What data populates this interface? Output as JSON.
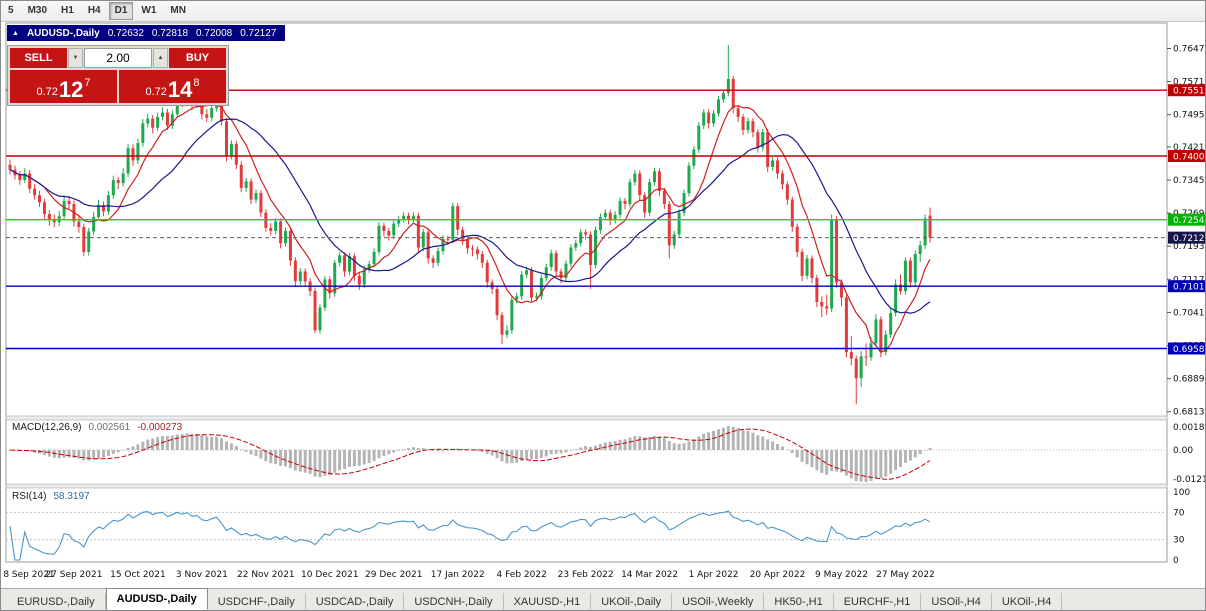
{
  "toolbar": {
    "timeframes": [
      {
        "label": "5",
        "active": false
      },
      {
        "label": "M30",
        "active": false
      },
      {
        "label": "H1",
        "active": false
      },
      {
        "label": "H4",
        "active": false
      },
      {
        "label": "D1",
        "active": true
      },
      {
        "label": "W1",
        "active": false
      },
      {
        "label": "MN",
        "active": false
      }
    ]
  },
  "chart_title": {
    "collapse_icon": "▲",
    "symbol": "AUDUSD-,Daily",
    "open": "0.72632",
    "high": "0.72818",
    "low": "0.72008",
    "close": "0.72127"
  },
  "trade_panel": {
    "sell_label": "SELL",
    "buy_label": "BUY",
    "volume": "2.00",
    "bid": {
      "big": "0.72",
      "pips": "12",
      "pip": "7"
    },
    "ask": {
      "big": "0.72",
      "pips": "14",
      "pip": "8"
    }
  },
  "price_axis": {
    "ticks": [
      "0.76470",
      "0.75710",
      "0.74950",
      "0.74210",
      "0.73450",
      "0.72690",
      "0.71930",
      "0.71170",
      "0.70410",
      "0.69650",
      "0.68890",
      "0.68130"
    ],
    "badges": [
      {
        "text": "0.75512",
        "bg": "#be0000"
      },
      {
        "text": "0.74002",
        "bg": "#be0000"
      },
      {
        "text": "0.72540",
        "bg": "#00b400"
      },
      {
        "text": "0.72127",
        "bg": "#15154a"
      },
      {
        "text": "0.71013",
        "bg": "#0000b4"
      },
      {
        "text": "0.69582",
        "bg": "#0000b4"
      }
    ]
  },
  "chart_data": {
    "type": "candlestick",
    "title": "AUDUSD Daily",
    "ylim": [
      0.6813,
      0.7647
    ],
    "label_every": 13,
    "x_labels": [
      "8 Sep 2021",
      "27 Sep 2021",
      "15 Oct 2021",
      "3 Nov 2021",
      "22 Nov 2021",
      "10 Dec 2021",
      "29 Dec 2021",
      "17 Jan 2022",
      "4 Feb 2022",
      "23 Feb 2022",
      "14 Mar 2022",
      "1 Apr 2022",
      "20 Apr 2022",
      "9 May 2022",
      "27 May 2022"
    ],
    "colors": {
      "up": "#1fa94e",
      "down": "#e23b3b"
    },
    "overlays": [
      {
        "name": "ma-fast",
        "type": "sma",
        "period": 8,
        "color": "#d02020"
      },
      {
        "name": "ma-slow",
        "type": "sma",
        "period": 21,
        "color": "#1a1a8c"
      }
    ],
    "hlines": [
      {
        "price": 0.75512,
        "color": "#c00000",
        "style": "solid"
      },
      {
        "price": 0.74002,
        "color": "#c00000",
        "style": "solid"
      },
      {
        "price": 0.7254,
        "color": "#00dc00",
        "style": "solid"
      },
      {
        "price": 0.72127,
        "color": "#606060",
        "style": "dash"
      },
      {
        "price": 0.71013,
        "color": "#0000c0",
        "style": "solid"
      },
      {
        "price": 0.69582,
        "color": "#0000c0",
        "style": "solid"
      }
    ],
    "candles": [
      [
        0.738,
        0.7392,
        0.7358,
        0.7369
      ],
      [
        0.7369,
        0.7378,
        0.7346,
        0.7356
      ],
      [
        0.7356,
        0.7366,
        0.7334,
        0.7345
      ],
      [
        0.7345,
        0.7372,
        0.7338,
        0.736
      ],
      [
        0.736,
        0.7368,
        0.7315,
        0.7325
      ],
      [
        0.7325,
        0.7336,
        0.73,
        0.731
      ],
      [
        0.731,
        0.732,
        0.7283,
        0.7294
      ],
      [
        0.7294,
        0.7302,
        0.7255,
        0.7267
      ],
      [
        0.7267,
        0.7276,
        0.724,
        0.7253
      ],
      [
        0.7253,
        0.7266,
        0.7236,
        0.7248
      ],
      [
        0.7248,
        0.7274,
        0.724,
        0.7262
      ],
      [
        0.7262,
        0.731,
        0.7254,
        0.7297
      ],
      [
        0.7297,
        0.7308,
        0.7278,
        0.729
      ],
      [
        0.729,
        0.7298,
        0.7238,
        0.725
      ],
      [
        0.725,
        0.7262,
        0.7224,
        0.7237
      ],
      [
        0.7237,
        0.7245,
        0.717,
        0.718
      ],
      [
        0.718,
        0.7235,
        0.7172,
        0.7227
      ],
      [
        0.7227,
        0.7272,
        0.7218,
        0.726
      ],
      [
        0.726,
        0.73,
        0.7252,
        0.7288
      ],
      [
        0.7288,
        0.7296,
        0.7262,
        0.7273
      ],
      [
        0.7273,
        0.732,
        0.7265,
        0.731
      ],
      [
        0.731,
        0.7355,
        0.7302,
        0.7345
      ],
      [
        0.7345,
        0.7352,
        0.7324,
        0.7338
      ],
      [
        0.7338,
        0.7372,
        0.733,
        0.736
      ],
      [
        0.736,
        0.7428,
        0.7352,
        0.7418
      ],
      [
        0.7418,
        0.7427,
        0.7378,
        0.739
      ],
      [
        0.739,
        0.744,
        0.7382,
        0.743
      ],
      [
        0.743,
        0.7485,
        0.7422,
        0.7475
      ],
      [
        0.7475,
        0.7497,
        0.7466,
        0.7486
      ],
      [
        0.7486,
        0.7494,
        0.7452,
        0.7465
      ],
      [
        0.7465,
        0.75,
        0.7458,
        0.749
      ],
      [
        0.749,
        0.7512,
        0.7482,
        0.75
      ],
      [
        0.75,
        0.7508,
        0.746,
        0.747
      ],
      [
        0.747,
        0.7505,
        0.7462,
        0.7496
      ],
      [
        0.7496,
        0.7546,
        0.7488,
        0.7535
      ],
      [
        0.7535,
        0.7555,
        0.7512,
        0.752
      ],
      [
        0.752,
        0.7553,
        0.7514,
        0.7545
      ],
      [
        0.7545,
        0.7552,
        0.7506,
        0.7518
      ],
      [
        0.7518,
        0.754,
        0.751,
        0.7529
      ],
      [
        0.7529,
        0.7536,
        0.7484,
        0.7496
      ],
      [
        0.7496,
        0.7508,
        0.7478,
        0.7488
      ],
      [
        0.7488,
        0.752,
        0.748,
        0.751
      ],
      [
        0.751,
        0.755,
        0.7502,
        0.7532
      ],
      [
        0.7532,
        0.754,
        0.747,
        0.748
      ],
      [
        0.748,
        0.7488,
        0.7388,
        0.74
      ],
      [
        0.74,
        0.7436,
        0.7392,
        0.7428
      ],
      [
        0.7428,
        0.7435,
        0.737,
        0.738
      ],
      [
        0.738,
        0.7388,
        0.7317,
        0.7327
      ],
      [
        0.7327,
        0.735,
        0.7318,
        0.7342
      ],
      [
        0.7342,
        0.7349,
        0.729,
        0.73
      ],
      [
        0.73,
        0.7323,
        0.7292,
        0.7315
      ],
      [
        0.7315,
        0.7322,
        0.726,
        0.727
      ],
      [
        0.727,
        0.7278,
        0.7226,
        0.7235
      ],
      [
        0.7235,
        0.7246,
        0.7218,
        0.7228
      ],
      [
        0.7228,
        0.7258,
        0.722,
        0.725
      ],
      [
        0.725,
        0.7257,
        0.7188,
        0.72
      ],
      [
        0.72,
        0.7236,
        0.7192,
        0.7228
      ],
      [
        0.7228,
        0.7235,
        0.7148,
        0.716
      ],
      [
        0.716,
        0.7168,
        0.71,
        0.7113
      ],
      [
        0.7113,
        0.7143,
        0.7105,
        0.7135
      ],
      [
        0.7135,
        0.7142,
        0.71,
        0.7112
      ],
      [
        0.7112,
        0.712,
        0.7078,
        0.709
      ],
      [
        0.709,
        0.7098,
        0.6993,
        0.7
      ],
      [
        0.7,
        0.706,
        0.6992,
        0.7052
      ],
      [
        0.7052,
        0.7125,
        0.7044,
        0.7117
      ],
      [
        0.7117,
        0.7124,
        0.7073,
        0.7085
      ],
      [
        0.7085,
        0.7162,
        0.7077,
        0.7155
      ],
      [
        0.7155,
        0.718,
        0.7147,
        0.7172
      ],
      [
        0.7172,
        0.7179,
        0.7123,
        0.7135
      ],
      [
        0.7135,
        0.7178,
        0.7127,
        0.717
      ],
      [
        0.717,
        0.7177,
        0.7113,
        0.7125
      ],
      [
        0.7125,
        0.7132,
        0.7093,
        0.7105
      ],
      [
        0.7105,
        0.7148,
        0.7097,
        0.714
      ],
      [
        0.714,
        0.716,
        0.7132,
        0.7152
      ],
      [
        0.7152,
        0.7188,
        0.7144,
        0.718
      ],
      [
        0.718,
        0.7248,
        0.7172,
        0.724
      ],
      [
        0.724,
        0.7247,
        0.7216,
        0.7228
      ],
      [
        0.7228,
        0.7235,
        0.7206,
        0.7218
      ],
      [
        0.7218,
        0.7253,
        0.721,
        0.7245
      ],
      [
        0.7245,
        0.7263,
        0.7237,
        0.7255
      ],
      [
        0.7255,
        0.7271,
        0.7247,
        0.7263
      ],
      [
        0.7263,
        0.727,
        0.7243,
        0.7255
      ],
      [
        0.7255,
        0.7271,
        0.7247,
        0.7263
      ],
      [
        0.7263,
        0.727,
        0.7178,
        0.719
      ],
      [
        0.719,
        0.7233,
        0.7182,
        0.7225
      ],
      [
        0.7225,
        0.7232,
        0.7153,
        0.7165
      ],
      [
        0.7165,
        0.7172,
        0.7143,
        0.7155
      ],
      [
        0.7155,
        0.719,
        0.7147,
        0.7182
      ],
      [
        0.7182,
        0.7218,
        0.7174,
        0.721
      ],
      [
        0.721,
        0.7217,
        0.7196,
        0.7208
      ],
      [
        0.7208,
        0.7293,
        0.72,
        0.7285
      ],
      [
        0.7285,
        0.7292,
        0.7219,
        0.7231
      ],
      [
        0.7231,
        0.7238,
        0.7196,
        0.7208
      ],
      [
        0.7208,
        0.7215,
        0.7176,
        0.7188
      ],
      [
        0.7188,
        0.7196,
        0.717,
        0.7186
      ],
      [
        0.7186,
        0.7193,
        0.7163,
        0.7175
      ],
      [
        0.7175,
        0.7182,
        0.7143,
        0.7155
      ],
      [
        0.7155,
        0.7162,
        0.7098,
        0.711
      ],
      [
        0.711,
        0.7117,
        0.7083,
        0.7095
      ],
      [
        0.7095,
        0.7102,
        0.7023,
        0.7035
      ],
      [
        0.7035,
        0.7042,
        0.6968,
        0.699
      ],
      [
        0.699,
        0.7012,
        0.6982,
        0.7
      ],
      [
        0.7,
        0.7078,
        0.6992,
        0.707
      ],
      [
        0.707,
        0.7086,
        0.7062,
        0.7078
      ],
      [
        0.7078,
        0.7136,
        0.707,
        0.7128
      ],
      [
        0.7128,
        0.7146,
        0.712,
        0.7138
      ],
      [
        0.7138,
        0.7145,
        0.7063,
        0.7075
      ],
      [
        0.7075,
        0.7086,
        0.7067,
        0.7078
      ],
      [
        0.7078,
        0.7128,
        0.707,
        0.712
      ],
      [
        0.712,
        0.7153,
        0.7112,
        0.7145
      ],
      [
        0.7145,
        0.7185,
        0.7137,
        0.7177
      ],
      [
        0.7177,
        0.7184,
        0.7123,
        0.7135
      ],
      [
        0.7135,
        0.7142,
        0.7108,
        0.712
      ],
      [
        0.712,
        0.7161,
        0.7112,
        0.7153
      ],
      [
        0.7153,
        0.7198,
        0.7145,
        0.719
      ],
      [
        0.719,
        0.7208,
        0.7182,
        0.72
      ],
      [
        0.72,
        0.7233,
        0.7192,
        0.7225
      ],
      [
        0.7225,
        0.7232,
        0.7208,
        0.722
      ],
      [
        0.722,
        0.7227,
        0.7095,
        0.715
      ],
      [
        0.715,
        0.7238,
        0.7142,
        0.723
      ],
      [
        0.723,
        0.7268,
        0.7222,
        0.726
      ],
      [
        0.726,
        0.7278,
        0.7252,
        0.727
      ],
      [
        0.727,
        0.7277,
        0.7241,
        0.7253
      ],
      [
        0.7253,
        0.7273,
        0.7245,
        0.7265
      ],
      [
        0.7265,
        0.7305,
        0.7257,
        0.7297
      ],
      [
        0.7297,
        0.7304,
        0.7278,
        0.729
      ],
      [
        0.729,
        0.7348,
        0.7282,
        0.734
      ],
      [
        0.734,
        0.7368,
        0.7332,
        0.736
      ],
      [
        0.736,
        0.7367,
        0.7298,
        0.731
      ],
      [
        0.731,
        0.7317,
        0.7258,
        0.727
      ],
      [
        0.727,
        0.7348,
        0.7262,
        0.734
      ],
      [
        0.734,
        0.7373,
        0.7332,
        0.7365
      ],
      [
        0.7365,
        0.7372,
        0.7308,
        0.732
      ],
      [
        0.732,
        0.7327,
        0.7278,
        0.729
      ],
      [
        0.729,
        0.7297,
        0.7165,
        0.7195
      ],
      [
        0.7195,
        0.7228,
        0.7187,
        0.722
      ],
      [
        0.722,
        0.7278,
        0.7212,
        0.727
      ],
      [
        0.727,
        0.7323,
        0.7262,
        0.7315
      ],
      [
        0.7315,
        0.7386,
        0.7307,
        0.7378
      ],
      [
        0.7378,
        0.7423,
        0.737,
        0.7415
      ],
      [
        0.7415,
        0.7478,
        0.7407,
        0.747
      ],
      [
        0.747,
        0.7508,
        0.7462,
        0.75
      ],
      [
        0.75,
        0.7507,
        0.7463,
        0.7475
      ],
      [
        0.7475,
        0.7506,
        0.7467,
        0.7498
      ],
      [
        0.7498,
        0.7538,
        0.749,
        0.753
      ],
      [
        0.753,
        0.7553,
        0.7522,
        0.7545
      ],
      [
        0.7545,
        0.7655,
        0.7537,
        0.7577
      ],
      [
        0.7577,
        0.7584,
        0.7498,
        0.751
      ],
      [
        0.751,
        0.7517,
        0.7478,
        0.749
      ],
      [
        0.749,
        0.7497,
        0.7448,
        0.746
      ],
      [
        0.746,
        0.7488,
        0.7452,
        0.748
      ],
      [
        0.748,
        0.7487,
        0.7443,
        0.7455
      ],
      [
        0.7455,
        0.7462,
        0.7408,
        0.742
      ],
      [
        0.742,
        0.7463,
        0.7412,
        0.7455
      ],
      [
        0.7455,
        0.7462,
        0.7363,
        0.7375
      ],
      [
        0.7375,
        0.7398,
        0.7367,
        0.739
      ],
      [
        0.739,
        0.7397,
        0.7348,
        0.736
      ],
      [
        0.736,
        0.7367,
        0.7323,
        0.7335
      ],
      [
        0.7335,
        0.7342,
        0.7288,
        0.73
      ],
      [
        0.73,
        0.7307,
        0.7226,
        0.7238
      ],
      [
        0.7238,
        0.7245,
        0.7168,
        0.718
      ],
      [
        0.718,
        0.7187,
        0.7113,
        0.7125
      ],
      [
        0.7125,
        0.7173,
        0.7117,
        0.7165
      ],
      [
        0.7165,
        0.7172,
        0.7108,
        0.712
      ],
      [
        0.712,
        0.7127,
        0.7053,
        0.7065
      ],
      [
        0.7065,
        0.7078,
        0.703,
        0.7055
      ],
      [
        0.7055,
        0.7082,
        0.7035,
        0.705
      ],
      [
        0.705,
        0.7266,
        0.7042,
        0.7255
      ],
      [
        0.7255,
        0.7262,
        0.7098,
        0.711
      ],
      [
        0.711,
        0.7117,
        0.7055,
        0.7075
      ],
      [
        0.7075,
        0.7082,
        0.6938,
        0.695
      ],
      [
        0.695,
        0.6987,
        0.692,
        0.6935
      ],
      [
        0.6935,
        0.6942,
        0.683,
        0.689
      ],
      [
        0.689,
        0.6952,
        0.687,
        0.694
      ],
      [
        0.694,
        0.697,
        0.6918,
        0.6938
      ],
      [
        0.6938,
        0.6985,
        0.693,
        0.697
      ],
      [
        0.697,
        0.7037,
        0.6962,
        0.7025
      ],
      [
        0.7025,
        0.7032,
        0.6938,
        0.695
      ],
      [
        0.695,
        0.7,
        0.6942,
        0.699
      ],
      [
        0.699,
        0.7052,
        0.6982,
        0.704
      ],
      [
        0.704,
        0.7117,
        0.7032,
        0.7105
      ],
      [
        0.7105,
        0.7128,
        0.7082,
        0.709
      ],
      [
        0.709,
        0.7168,
        0.7082,
        0.716
      ],
      [
        0.716,
        0.7167,
        0.7098,
        0.711
      ],
      [
        0.711,
        0.7183,
        0.7102,
        0.7175
      ],
      [
        0.7175,
        0.7205,
        0.7157,
        0.7195
      ],
      [
        0.7195,
        0.7266,
        0.7187,
        0.7257
      ],
      [
        0.72632,
        0.72818,
        0.72008,
        0.72127
      ]
    ]
  },
  "macd_panel": {
    "title": "MACD(12,26,9)",
    "value_main": "0.002561",
    "value_signal": "-0.000273",
    "axis": [
      "0.00189",
      "0.00",
      "-0.01218"
    ],
    "params": {
      "fast": 12,
      "slow": 26,
      "signal": 9
    },
    "colors": {
      "hist": "#b4b4b4",
      "signal": "#c80000"
    }
  },
  "rsi_panel": {
    "title": "RSI(14)",
    "value": "58.3197",
    "axis": [
      "100",
      "70",
      "30",
      "0"
    ],
    "period": 14,
    "levels": [
      70,
      30
    ],
    "color": "#4c96cc"
  },
  "tabs": {
    "items": [
      {
        "label": "EURUSD-,Daily",
        "active": false
      },
      {
        "label": "AUDUSD-,Daily",
        "active": true
      },
      {
        "label": "USDCHF-,Daily",
        "active": false
      },
      {
        "label": "USDCAD-,Daily",
        "active": false
      },
      {
        "label": "USDCNH-,Daily",
        "active": false
      },
      {
        "label": "XAUUSD-,H1",
        "active": false
      },
      {
        "label": "UKOil-,Daily",
        "active": false
      },
      {
        "label": "USOil-,Weekly",
        "active": false
      },
      {
        "label": "HK50-,H1",
        "active": false
      },
      {
        "label": "EURCHF-,H1",
        "active": false
      },
      {
        "label": "USOil-,H4",
        "active": false
      },
      {
        "label": "UKOil-,H4",
        "active": false
      }
    ]
  }
}
